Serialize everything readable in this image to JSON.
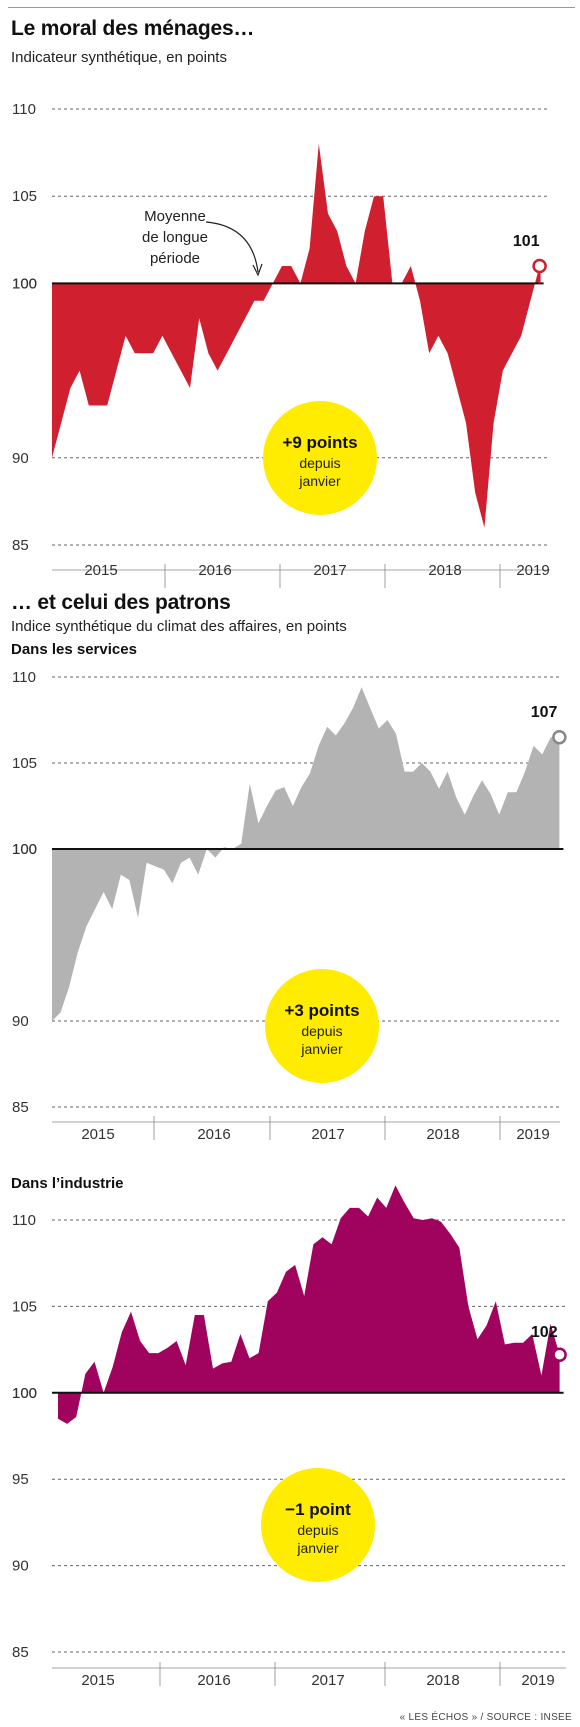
{
  "header": {
    "title1": "Le moral des ménages…",
    "subtitle1": "Indicateur synthétique, en points",
    "title2": "… et celui des patrons",
    "subtitle2": "Indice synthétique du climat des affaires, en points",
    "source": "« LES ÉCHOS » / SOURCE : INSEE"
  },
  "chart_data": [
    {
      "type": "area",
      "title": "Le moral des ménages…",
      "subtitle": "Indicateur synthétique, en points",
      "x_labels": [
        "2015",
        "2016",
        "2017",
        "2018",
        "2019"
      ],
      "yticks": [
        85,
        90,
        100,
        105,
        110
      ],
      "ylim": [
        85,
        110
      ],
      "baseline": 100,
      "color": "#d01f2f",
      "first_month": "2014-08",
      "values": [
        90,
        92,
        94,
        95,
        93,
        93,
        93,
        95,
        97,
        96,
        96,
        96,
        97,
        96,
        95,
        94,
        98,
        96,
        95,
        96,
        97,
        98,
        99,
        99,
        100,
        101,
        101,
        100,
        102,
        108,
        104,
        103,
        101,
        100,
        103,
        105,
        105,
        100,
        100,
        101,
        99,
        96,
        97,
        96,
        94,
        92,
        88,
        86,
        92,
        95,
        96,
        97,
        99,
        101
      ],
      "annotation": "Moyenne\nde longue\npériode",
      "last_value_label": "101",
      "badge": {
        "line1": "+9 points",
        "line2": "depuis",
        "line3": "janvier"
      }
    },
    {
      "type": "area",
      "title": "Dans les services",
      "x_labels": [
        "2015",
        "2016",
        "2017",
        "2018",
        "2019"
      ],
      "yticks": [
        85,
        90,
        100,
        105,
        110
      ],
      "ylim": [
        85,
        110
      ],
      "baseline": 100,
      "color": "#b3b3b3",
      "first_month": "2014-08",
      "values": [
        90,
        90.5,
        92,
        94,
        95.5,
        96.5,
        97.5,
        96.5,
        98.5,
        98.2,
        96,
        99.2,
        99,
        98.8,
        98,
        99.2,
        99.5,
        98.5,
        100,
        99.5,
        100.1,
        100,
        100.3,
        103.8,
        101.5,
        102.5,
        103.4,
        103.6,
        102.5,
        103.6,
        104.4,
        106,
        107.1,
        106.6,
        107.3,
        108.2,
        109.4,
        108.2,
        107,
        107.5,
        106.7,
        104.5,
        104.5,
        105,
        104.5,
        103.5,
        104.5,
        103,
        102,
        103.1,
        104,
        103.2,
        102,
        103.3,
        103.3,
        104.5,
        106,
        105.5,
        106.5,
        106.5
      ],
      "last_value_label": "107",
      "badge": {
        "line1": "+3 points",
        "line2": "depuis",
        "line3": "janvier"
      }
    },
    {
      "type": "area",
      "title": "Dans l’industrie",
      "x_labels": [
        "2015",
        "2016",
        "2017",
        "2018",
        "2019"
      ],
      "yticks": [
        85,
        90,
        95,
        100,
        105,
        110
      ],
      "ylim": [
        85,
        113
      ],
      "baseline": 100,
      "color": "#a0035e",
      "first_month": "2014-08",
      "values": [
        98.5,
        98.2,
        98.6,
        101.1,
        101.8,
        100,
        101.5,
        103.5,
        104.7,
        103,
        102.3,
        102.3,
        102.6,
        103,
        101.6,
        104.5,
        104.5,
        101.4,
        101.7,
        101.8,
        103.4,
        102,
        102.3,
        105.3,
        105.8,
        107,
        107.4,
        105.6,
        108.6,
        109,
        108.6,
        110.1,
        110.7,
        110.7,
        110.2,
        111.3,
        110.7,
        112,
        111,
        110.1,
        110,
        110.1,
        109.9,
        109.2,
        108.4,
        105,
        103.1,
        103.9,
        105.3,
        102.8,
        102.9,
        102.9,
        103.4,
        101,
        104,
        102.2
      ],
      "last_value_label": "102",
      "badge": {
        "line1": "−1 point",
        "line2": "depuis",
        "line3": "janvier"
      }
    }
  ]
}
